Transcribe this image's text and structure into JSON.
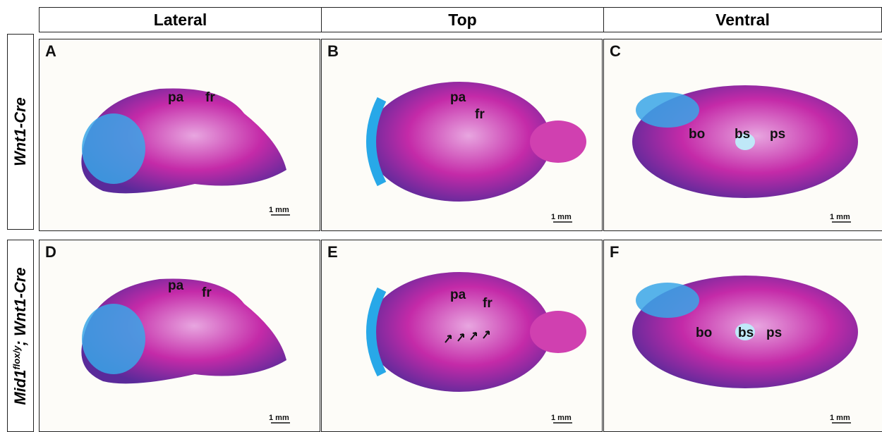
{
  "header": {
    "columns": [
      "Lateral",
      "Top",
      "Ventral"
    ]
  },
  "rows": [
    {
      "label": {
        "gene": "Wnt1-Cre"
      },
      "panels": [
        {
          "letter": "A",
          "annotations": [
            "pa",
            "fr"
          ],
          "scale": "1 mm"
        },
        {
          "letter": "B",
          "annotations": [
            "pa",
            "fr"
          ],
          "scale": "1 mm"
        },
        {
          "letter": "C",
          "annotations": [
            "bo",
            "bs",
            "ps"
          ],
          "scale": "1 mm"
        }
      ]
    },
    {
      "label": {
        "gene": "Mid1",
        "superscript": "flox/y",
        "rest": "; Wnt1-Cre"
      },
      "panels": [
        {
          "letter": "D",
          "annotations": [
            "pa",
            "fr"
          ],
          "scale": "1 mm"
        },
        {
          "letter": "E",
          "annotations": [
            "pa",
            "fr"
          ],
          "scale": "1 mm"
        },
        {
          "letter": "F",
          "annotations": [
            "bo",
            "bs",
            "ps"
          ],
          "scale": "1 mm"
        }
      ]
    }
  ]
}
